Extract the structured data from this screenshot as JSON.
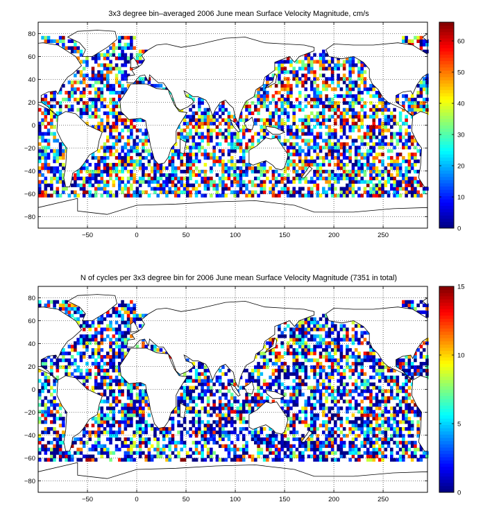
{
  "chart_data": [
    {
      "type": "heatmap",
      "title": "3x3 degree bin–averaged 2006 June mean Surface Velocity Magnitude, cm/s",
      "xlim": [
        -100,
        295
      ],
      "ylim": [
        -90,
        90
      ],
      "xticks": [
        -50,
        0,
        50,
        100,
        150,
        200,
        250
      ],
      "yticks": [
        80,
        60,
        40,
        20,
        0,
        -20,
        -40,
        -60,
        -80
      ],
      "grid": "dotted",
      "bin_size_deg": 3,
      "colorbar": {
        "range": [
          0,
          66
        ],
        "ticks": [
          0,
          10,
          20,
          30,
          40,
          50,
          60
        ],
        "colormap": "jet"
      },
      "bins_note": "",
      "seed": 7
    },
    {
      "type": "heatmap",
      "title": "N of cycles per 3x3 degree bin for 2006 June mean Surface Velocity Magnitude (7351 in total)",
      "xlim": [
        -100,
        295
      ],
      "ylim": [
        -90,
        90
      ],
      "xticks": [
        -50,
        0,
        50,
        100,
        150,
        200,
        250
      ],
      "yticks": [
        80,
        60,
        40,
        20,
        0,
        -20,
        -40,
        -60,
        -80
      ],
      "grid": "dotted",
      "bin_size_deg": 3,
      "colorbar": {
        "range": [
          0,
          15
        ],
        "ticks": [
          0,
          5,
          10,
          15
        ],
        "colormap": "jet"
      },
      "bins_note": "",
      "seed": 13
    }
  ],
  "colors": {
    "background": "#ffffff",
    "land_outline": "#000000",
    "axes": "#000000"
  }
}
